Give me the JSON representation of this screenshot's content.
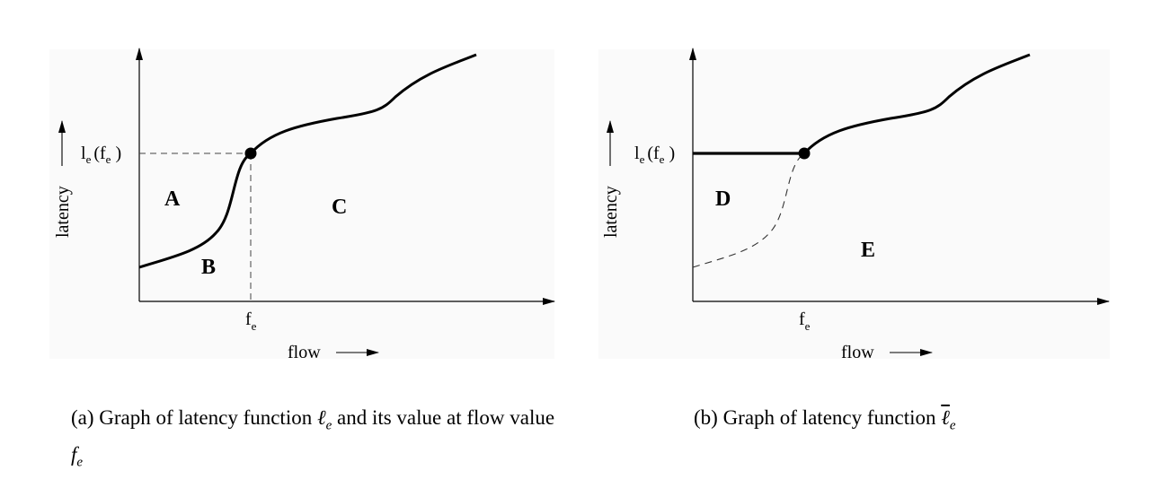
{
  "panels": [
    {
      "id": "a",
      "y_axis_label": "latency",
      "x_axis_label": "flow",
      "point_label": {
        "l": "l",
        "sub_e": "e",
        "open": "(f",
        "sub_e2": "e",
        "close": " )"
      },
      "x_tick": {
        "f": "f",
        "sub": "e"
      },
      "regions": [
        "A",
        "B",
        "C"
      ],
      "caption_prefix": "(a) Graph of latency function ",
      "caption_symbol": "ℓ",
      "caption_sub": "e",
      "caption_mid": " and its value at flow value ",
      "caption_fsym": "f",
      "caption_fsub": "e"
    },
    {
      "id": "b",
      "y_axis_label": "latency",
      "x_axis_label": "flow",
      "point_label": {
        "l": "l",
        "sub_e": "e",
        "open": "(f",
        "sub_e2": "e",
        "close": " )"
      },
      "x_tick": {
        "f": "f",
        "sub": "e"
      },
      "regions": [
        "D",
        "E"
      ],
      "caption_prefix": "(b) Graph of latency function ",
      "caption_symbol": "ℓ",
      "caption_sub": "e"
    }
  ],
  "colors": {
    "panel_bg": "#fafafa",
    "ink": "#000000"
  }
}
